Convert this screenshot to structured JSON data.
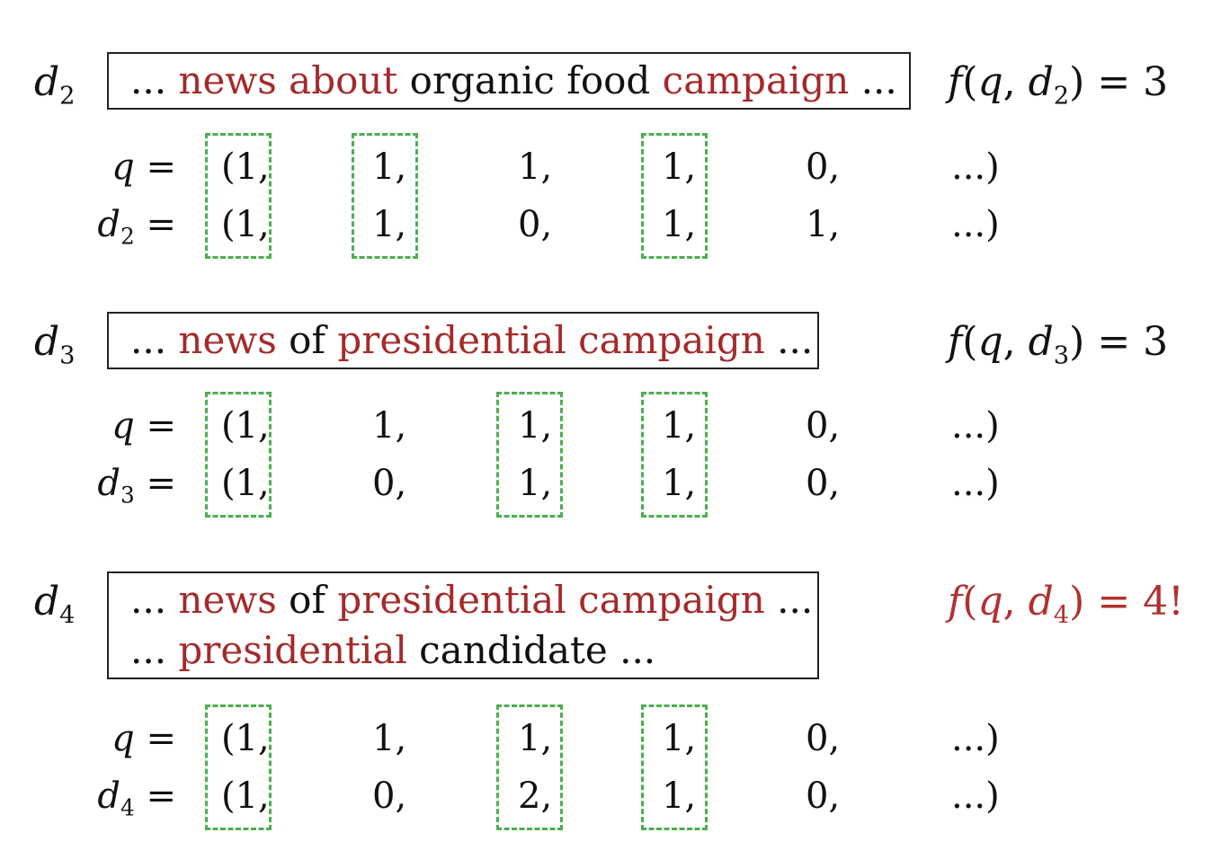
{
  "colors": {
    "highlight": "#a52a2a",
    "match_box": "#4caf50",
    "score_alert": "#b03030"
  },
  "examples": [
    {
      "label_base": "d",
      "label_sub": "2",
      "lines": [
        [
          {
            "t": "... ",
            "h": false
          },
          {
            "t": "news about",
            "h": true
          },
          {
            "t": " organic food ",
            "h": false
          },
          {
            "t": "campaign",
            "h": true
          },
          {
            "t": " ...",
            "h": false
          }
        ]
      ],
      "score": {
        "f": "f",
        "open": "(",
        "q": "q",
        "comma": ", ",
        "d": "d",
        "sub": "2",
        "close": ")",
        "eq": " = ",
        "value": "3"
      },
      "score_highlight": false,
      "q_row": {
        "label": "q",
        "eq": " =",
        "values": [
          "(1,",
          "1,",
          "1,",
          "1,",
          "0,",
          "...)"
        ]
      },
      "d_row": {
        "label": "d",
        "sub": "2",
        "eq": " =",
        "values": [
          "(1,",
          "1,",
          "0,",
          "1,",
          "1,",
          "...)"
        ]
      },
      "matched_columns": [
        0,
        1,
        3
      ]
    },
    {
      "label_base": "d",
      "label_sub": "3",
      "lines": [
        [
          {
            "t": "... ",
            "h": false
          },
          {
            "t": "news",
            "h": true
          },
          {
            "t": " of ",
            "h": false
          },
          {
            "t": "presidential campaign",
            "h": true
          },
          {
            "t": " ...",
            "h": false
          }
        ]
      ],
      "score": {
        "f": "f",
        "open": "(",
        "q": "q",
        "comma": ", ",
        "d": "d",
        "sub": "3",
        "close": ")",
        "eq": " = ",
        "value": "3"
      },
      "score_highlight": false,
      "q_row": {
        "label": "q",
        "eq": " =",
        "values": [
          "(1,",
          "1,",
          "1,",
          "1,",
          "0,",
          "...)"
        ]
      },
      "d_row": {
        "label": "d",
        "sub": "3",
        "eq": " =",
        "values": [
          "(1,",
          "0,",
          "1,",
          "1,",
          "0,",
          "...)"
        ]
      },
      "matched_columns": [
        0,
        2,
        3
      ]
    },
    {
      "label_base": "d",
      "label_sub": "4",
      "lines": [
        [
          {
            "t": "... ",
            "h": false
          },
          {
            "t": "news",
            "h": true
          },
          {
            "t": " of ",
            "h": false
          },
          {
            "t": "presidential campaign",
            "h": true
          },
          {
            "t": " ...",
            "h": false
          }
        ],
        [
          {
            "t": "... ",
            "h": false
          },
          {
            "t": "presidential",
            "h": true
          },
          {
            "t": " candidate ...",
            "h": false
          }
        ]
      ],
      "score": {
        "f": "f",
        "open": "(",
        "q": "q",
        "comma": ", ",
        "d": "d",
        "sub": "4",
        "close": ")",
        "eq": " = ",
        "value": "4!"
      },
      "score_highlight": true,
      "q_row": {
        "label": "q",
        "eq": " =",
        "values": [
          "(1,",
          "1,",
          "1,",
          "1,",
          "0,",
          "...)"
        ]
      },
      "d_row": {
        "label": "d",
        "sub": "4",
        "eq": " =",
        "values": [
          "(1,",
          "0,",
          "2,",
          "1,",
          "0,",
          "...)"
        ]
      },
      "matched_columns": [
        0,
        2,
        3
      ]
    }
  ]
}
